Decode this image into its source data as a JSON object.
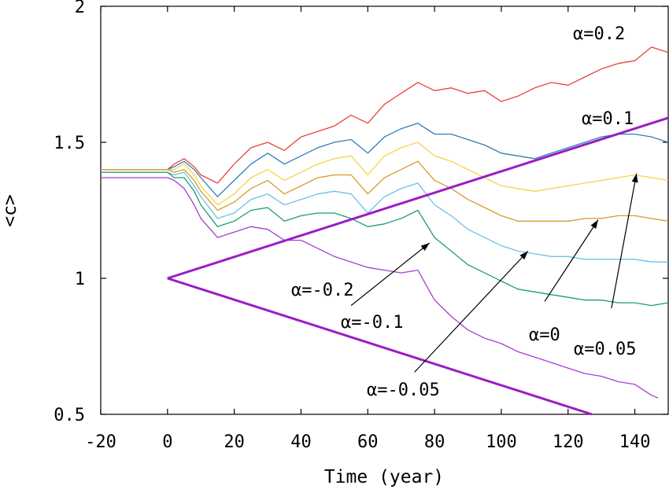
{
  "chart_data": {
    "type": "line",
    "title": "",
    "xlabel": "Time (year)",
    "ylabel": "<c>",
    "xlim": [
      -20,
      150
    ],
    "ylim": [
      0.5,
      2
    ],
    "xticks": [
      -20,
      0,
      20,
      40,
      60,
      80,
      100,
      120,
      140
    ],
    "xtick_labels": [
      "-20",
      "0",
      "20",
      "40",
      "60",
      "80",
      "100",
      "120",
      "140"
    ],
    "yticks": [
      0.5,
      1,
      1.5,
      2
    ],
    "ytick_labels": [
      "0.5",
      "1",
      "1.5",
      "2"
    ],
    "grid": false,
    "colors": {
      "alpha_0.2": "#e8433a",
      "alpha_0.1": "#2e7eb8",
      "alpha_0.05": "#f2d54a",
      "alpha_0": "#d99a2b",
      "alpha_-0.05": "#6cc0e8",
      "alpha_-0.1": "#1f9c78",
      "alpha_-0.2": "#a53fd0",
      "envelope": "#9a1cc4"
    },
    "series": [
      {
        "key": "alpha_0.2",
        "x": [
          -20,
          -10,
          0,
          2,
          5,
          8,
          10,
          15,
          20,
          25,
          30,
          35,
          40,
          45,
          50,
          55,
          60,
          65,
          70,
          75,
          80,
          85,
          90,
          95,
          100,
          105,
          110,
          115,
          120,
          125,
          130,
          135,
          140,
          145,
          150
        ],
        "y": [
          1.4,
          1.4,
          1.4,
          1.42,
          1.44,
          1.41,
          1.38,
          1.35,
          1.42,
          1.48,
          1.5,
          1.47,
          1.52,
          1.54,
          1.56,
          1.6,
          1.57,
          1.64,
          1.68,
          1.72,
          1.69,
          1.7,
          1.68,
          1.69,
          1.65,
          1.67,
          1.7,
          1.72,
          1.71,
          1.74,
          1.77,
          1.79,
          1.8,
          1.85,
          1.83
        ]
      },
      {
        "key": "alpha_0.1",
        "x": [
          -20,
          -10,
          0,
          2,
          5,
          8,
          10,
          15,
          20,
          25,
          30,
          35,
          40,
          45,
          50,
          55,
          60,
          65,
          70,
          75,
          80,
          85,
          90,
          95,
          100,
          105,
          110,
          115,
          120,
          125,
          130,
          135,
          140,
          145,
          150
        ],
        "y": [
          1.4,
          1.4,
          1.4,
          1.41,
          1.43,
          1.4,
          1.37,
          1.3,
          1.36,
          1.42,
          1.46,
          1.42,
          1.45,
          1.48,
          1.5,
          1.51,
          1.46,
          1.52,
          1.55,
          1.57,
          1.53,
          1.53,
          1.51,
          1.49,
          1.46,
          1.45,
          1.44,
          1.46,
          1.48,
          1.5,
          1.52,
          1.53,
          1.53,
          1.52,
          1.5
        ]
      },
      {
        "key": "alpha_0.05",
        "x": [
          -20,
          -10,
          0,
          2,
          5,
          8,
          10,
          15,
          20,
          25,
          30,
          35,
          40,
          45,
          50,
          55,
          60,
          65,
          70,
          75,
          80,
          85,
          90,
          95,
          100,
          105,
          110,
          115,
          120,
          125,
          130,
          135,
          140,
          145,
          150
        ],
        "y": [
          1.4,
          1.4,
          1.4,
          1.4,
          1.42,
          1.38,
          1.34,
          1.27,
          1.31,
          1.37,
          1.4,
          1.36,
          1.39,
          1.42,
          1.44,
          1.45,
          1.38,
          1.45,
          1.48,
          1.5,
          1.45,
          1.43,
          1.4,
          1.37,
          1.34,
          1.33,
          1.32,
          1.33,
          1.34,
          1.35,
          1.36,
          1.37,
          1.38,
          1.37,
          1.36
        ]
      },
      {
        "key": "alpha_0",
        "x": [
          -20,
          -10,
          0,
          2,
          5,
          8,
          10,
          15,
          20,
          25,
          30,
          35,
          40,
          45,
          50,
          55,
          60,
          65,
          70,
          75,
          80,
          85,
          90,
          95,
          100,
          105,
          110,
          115,
          120,
          125,
          130,
          135,
          140,
          145,
          150
        ],
        "y": [
          1.4,
          1.4,
          1.4,
          1.39,
          1.4,
          1.36,
          1.32,
          1.25,
          1.28,
          1.33,
          1.36,
          1.31,
          1.34,
          1.37,
          1.38,
          1.38,
          1.31,
          1.37,
          1.4,
          1.43,
          1.36,
          1.33,
          1.29,
          1.26,
          1.23,
          1.21,
          1.21,
          1.21,
          1.21,
          1.22,
          1.22,
          1.23,
          1.23,
          1.22,
          1.21
        ]
      },
      {
        "key": "alpha_-0.05",
        "x": [
          -20,
          -10,
          0,
          2,
          5,
          8,
          10,
          15,
          20,
          25,
          30,
          35,
          40,
          45,
          50,
          55,
          60,
          65,
          70,
          75,
          80,
          85,
          90,
          95,
          100,
          105,
          110,
          115,
          120,
          125,
          130,
          135,
          140,
          145,
          150
        ],
        "y": [
          1.39,
          1.39,
          1.39,
          1.38,
          1.39,
          1.34,
          1.3,
          1.22,
          1.24,
          1.29,
          1.31,
          1.27,
          1.29,
          1.31,
          1.32,
          1.31,
          1.24,
          1.3,
          1.33,
          1.35,
          1.27,
          1.23,
          1.18,
          1.15,
          1.12,
          1.1,
          1.09,
          1.08,
          1.08,
          1.07,
          1.07,
          1.07,
          1.07,
          1.06,
          1.06
        ]
      },
      {
        "key": "alpha_-0.1",
        "x": [
          -20,
          -10,
          0,
          2,
          5,
          8,
          10,
          15,
          20,
          25,
          30,
          35,
          40,
          45,
          50,
          55,
          60,
          65,
          70,
          75,
          80,
          85,
          90,
          95,
          100,
          105,
          110,
          115,
          120,
          125,
          130,
          135,
          140,
          145,
          150
        ],
        "y": [
          1.39,
          1.39,
          1.39,
          1.37,
          1.37,
          1.32,
          1.27,
          1.19,
          1.21,
          1.25,
          1.26,
          1.21,
          1.23,
          1.24,
          1.24,
          1.22,
          1.19,
          1.2,
          1.22,
          1.25,
          1.15,
          1.1,
          1.05,
          1.02,
          0.99,
          0.96,
          0.95,
          0.94,
          0.93,
          0.92,
          0.92,
          0.91,
          0.91,
          0.9,
          0.91
        ]
      },
      {
        "key": "alpha_-0.2",
        "x": [
          -20,
          -10,
          0,
          2,
          5,
          8,
          10,
          15,
          20,
          25,
          30,
          35,
          40,
          45,
          50,
          55,
          60,
          65,
          70,
          75,
          80,
          85,
          90,
          95,
          100,
          105,
          110,
          115,
          120,
          125,
          130,
          135,
          140,
          145,
          147
        ],
        "y": [
          1.37,
          1.37,
          1.37,
          1.36,
          1.33,
          1.27,
          1.22,
          1.15,
          1.17,
          1.19,
          1.18,
          1.14,
          1.14,
          1.11,
          1.08,
          1.06,
          1.04,
          1.03,
          1.02,
          1.03,
          0.92,
          0.86,
          0.81,
          0.78,
          0.76,
          0.73,
          0.71,
          0.69,
          0.67,
          0.65,
          0.64,
          0.62,
          0.61,
          0.57,
          0.56
        ]
      },
      {
        "key": "envelope",
        "x": [
          0,
          150
        ],
        "y": [
          1,
          1.59
        ]
      },
      {
        "key": "envelope",
        "x": [
          0,
          150
        ],
        "y": [
          1,
          0.41
        ]
      }
    ],
    "annotations": [
      {
        "text": "α=0.2"
      },
      {
        "text": "α=0.1"
      },
      {
        "text": "α=-0.2"
      },
      {
        "text": "α=-0.1"
      },
      {
        "text": "α=-0.05"
      },
      {
        "text": "α=0"
      },
      {
        "text": "α=0.05"
      }
    ]
  }
}
